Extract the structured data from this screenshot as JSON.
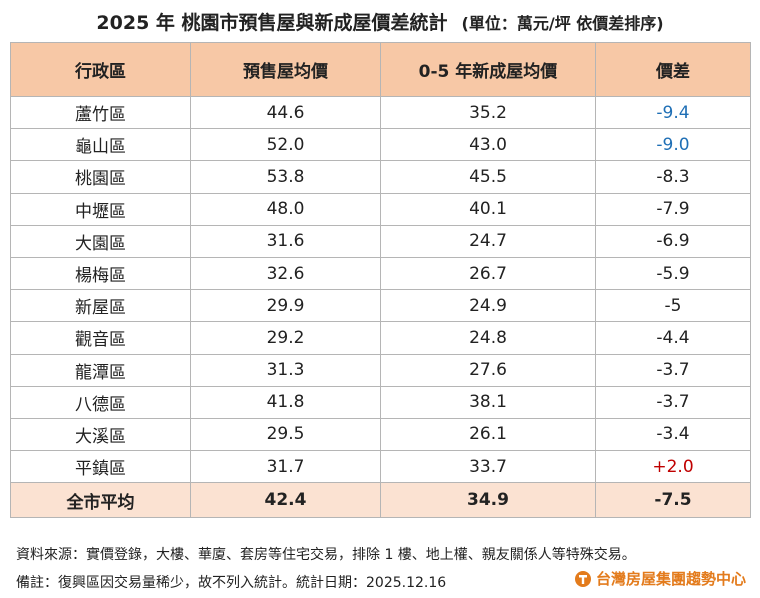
{
  "header": {
    "title": "2025 年  桃園市預售屋與新成屋價差統計",
    "unit": "(單位：萬元/坪  依價差排序)"
  },
  "table": {
    "columns": [
      "行政區",
      "預售屋均價",
      "0-5 年新成屋均價",
      "價差"
    ],
    "rows": [
      {
        "cells": [
          "蘆竹區",
          "44.6",
          "35.2",
          "-9.4"
        ],
        "diff_color": "#1f6fb5"
      },
      {
        "cells": [
          "龜山區",
          "52.0",
          "43.0",
          "-9.0"
        ],
        "diff_color": "#1f6fb5"
      },
      {
        "cells": [
          "桃園區",
          "53.8",
          "45.5",
          "-8.3"
        ]
      },
      {
        "cells": [
          "中壢區",
          "48.0",
          "40.1",
          "-7.9"
        ]
      },
      {
        "cells": [
          "大園區",
          "31.6",
          "24.7",
          "-6.9"
        ]
      },
      {
        "cells": [
          "楊梅區",
          "32.6",
          "26.7",
          "-5.9"
        ]
      },
      {
        "cells": [
          "新屋區",
          "29.9",
          "24.9",
          "-5"
        ]
      },
      {
        "cells": [
          "觀音區",
          "29.2",
          "24.8",
          "-4.4"
        ]
      },
      {
        "cells": [
          "龍潭區",
          "31.3",
          "27.6",
          "-3.7"
        ]
      },
      {
        "cells": [
          "八德區",
          "41.8",
          "38.1",
          "-3.7"
        ]
      },
      {
        "cells": [
          "大溪區",
          "29.5",
          "26.1",
          "-3.4"
        ]
      },
      {
        "cells": [
          "平鎮區",
          "31.7",
          "33.7",
          "+2.0"
        ],
        "diff_color": "#c00000"
      }
    ],
    "total": [
      "全市平均",
      "42.4",
      "34.9",
      "-7.5"
    ]
  },
  "footer": {
    "source": "資料來源：實價登錄，大樓、華廈、套房等住宅交易，排除 1 樓、地上權、親友關係人等特殊交易。",
    "note": "備註：復興區因交易量稀少，故不列入統計。統計日期：2025.12.16",
    "logo": "台灣房屋集團趨勢中心"
  }
}
